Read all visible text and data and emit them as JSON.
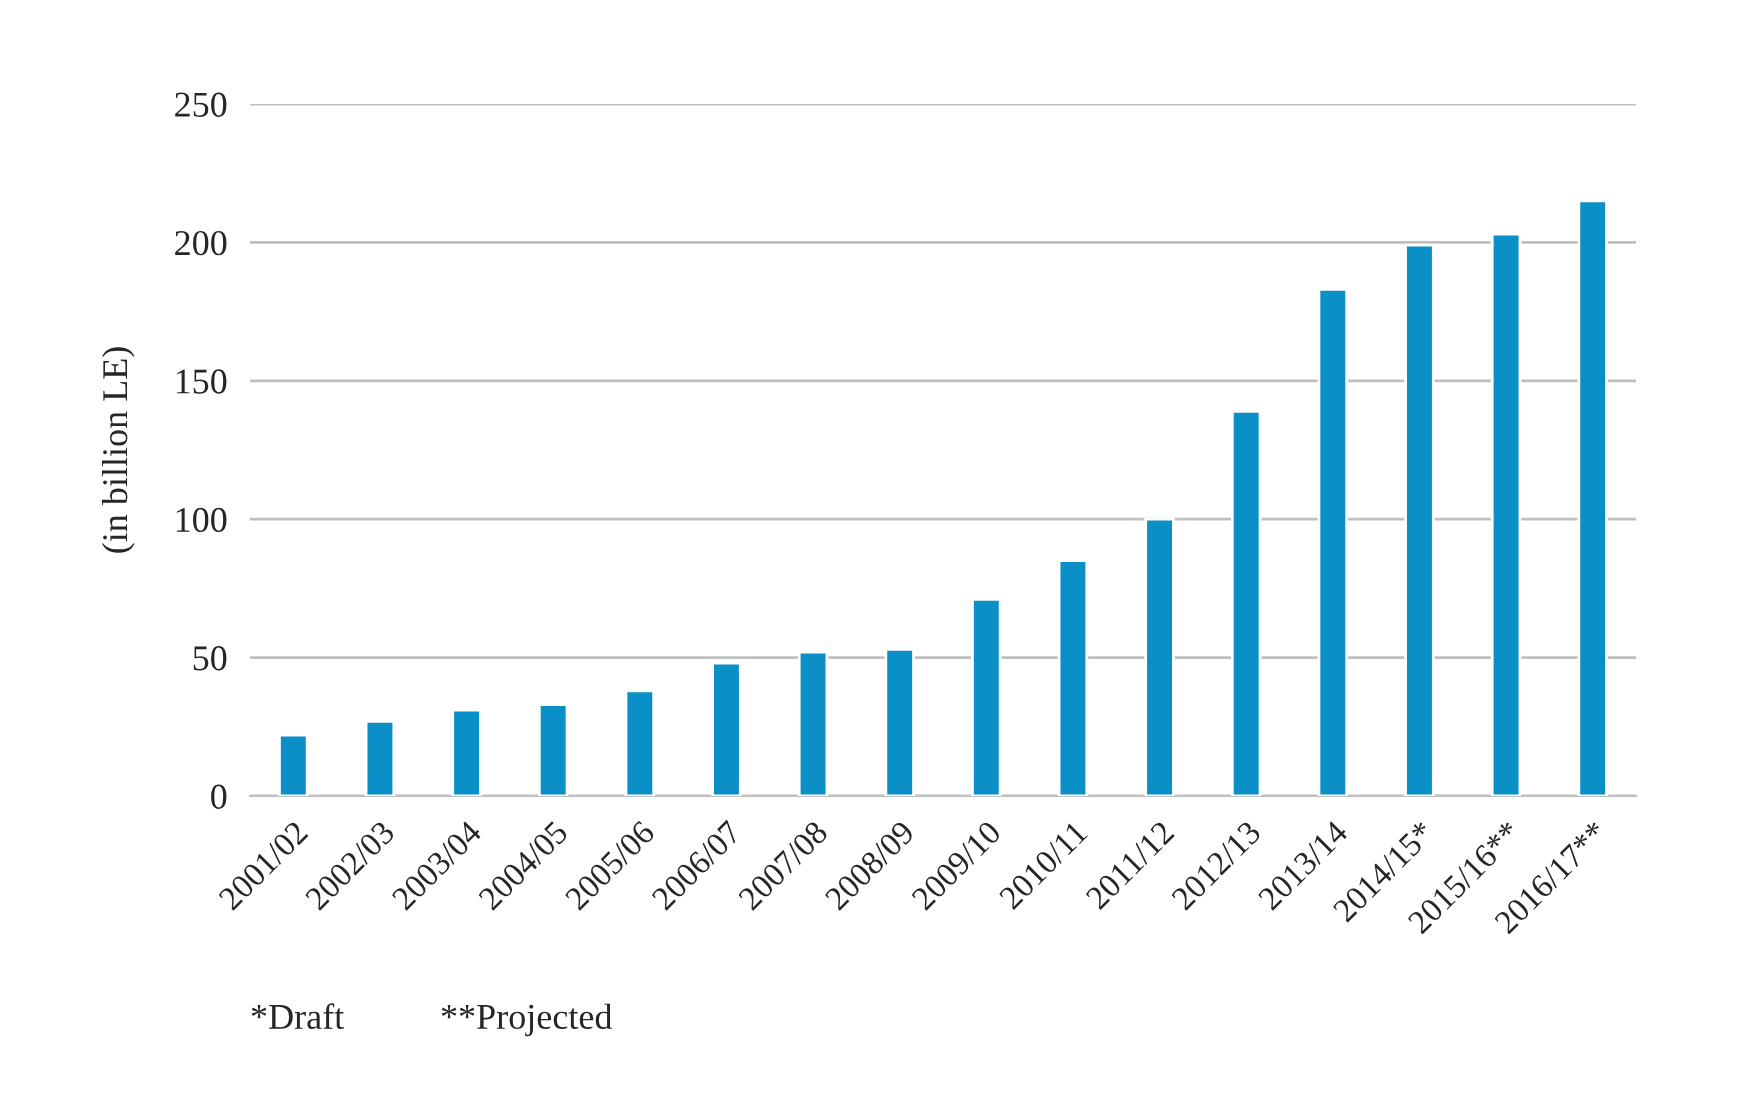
{
  "chart_data": {
    "type": "bar",
    "ylabel": "(in billion LE)",
    "categories": [
      "2001/02",
      "2002/03",
      "2003/04",
      "2004/05",
      "2005/06",
      "2006/07",
      "2007/08",
      "2008/09",
      "2009/10",
      "2010/11",
      "2011/12",
      "2012/13",
      "2013/14",
      "2014/15*",
      "2015/16**",
      "2016/17**"
    ],
    "values": [
      22,
      27,
      31,
      33,
      38,
      48,
      52,
      53,
      71,
      85,
      100,
      139,
      183,
      199,
      203,
      215
    ],
    "color": "#0a8fc6",
    "ylim": [
      0,
      250
    ],
    "yticks": [
      0,
      50,
      100,
      150,
      200,
      250
    ],
    "grid": "y",
    "legend": false,
    "annotations": [
      "*Draft",
      "**Projected"
    ]
  }
}
